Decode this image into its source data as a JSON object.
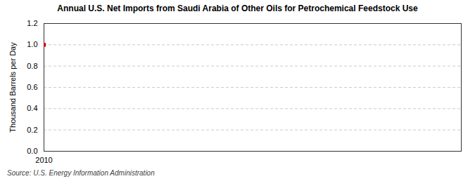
{
  "chart_data": {
    "type": "scatter",
    "title": "Annual U.S. Net Imports from Saudi Arabia of Other Oils for Petrochemical Feedstock Use",
    "ylabel": "Thousand Barrels per Day",
    "annotations": [
      "Source: U.S. Energy Information Administration"
    ],
    "x": [
      2010
    ],
    "values": [
      1.0
    ],
    "color": "#cc0000",
    "marker": "square",
    "xlim": [
      2010,
      2013
    ],
    "xticks": [
      2010
    ],
    "ylim": [
      0.0,
      1.2
    ],
    "yticks": [
      {
        "value": 0.0,
        "label": "0.0"
      },
      0.2,
      0.4,
      0.6,
      0.8,
      {
        "value": 1.0,
        "label": "1.0"
      },
      1.2
    ],
    "grid": true
  }
}
